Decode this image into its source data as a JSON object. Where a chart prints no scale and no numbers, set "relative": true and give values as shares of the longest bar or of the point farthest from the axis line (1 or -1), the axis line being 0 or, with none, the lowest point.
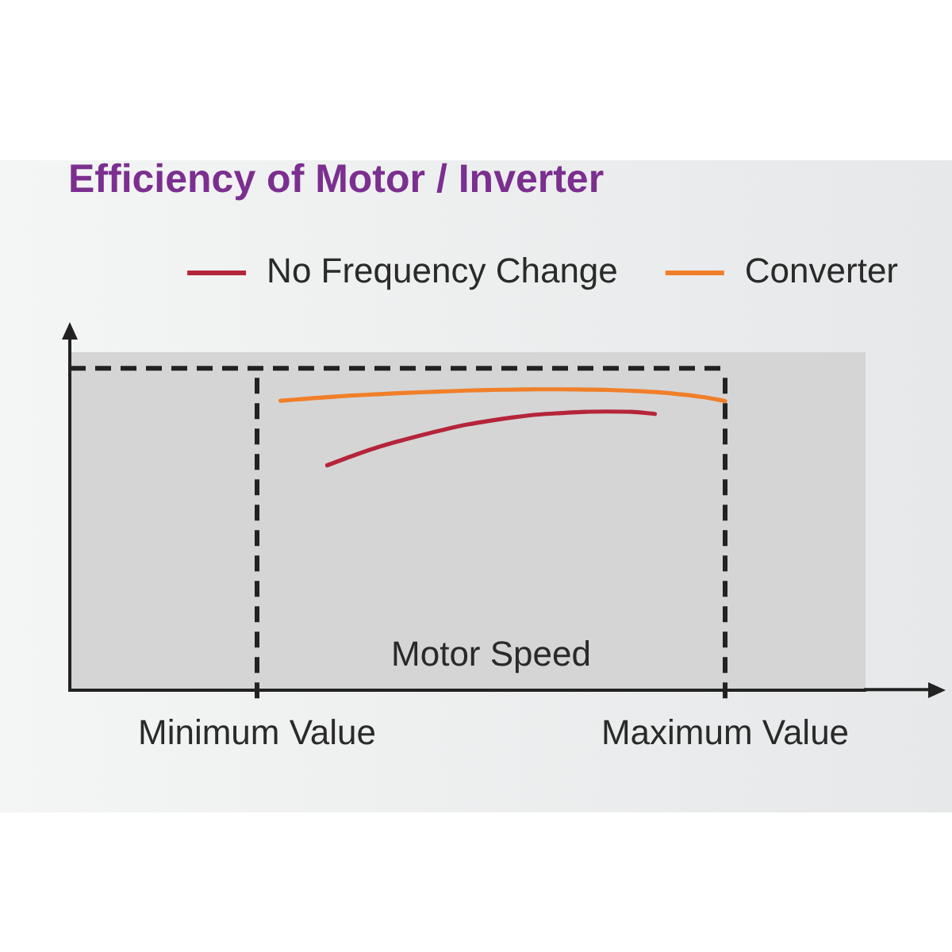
{
  "chart_data": {
    "type": "line",
    "title": "Efficiency of Motor / Inverter",
    "xlabel": "Motor Speed",
    "relative": true,
    "categories": [
      null,
      null,
      null,
      null,
      null,
      null,
      null,
      null,
      "Minimum Value",
      null,
      null,
      null,
      null,
      null,
      null,
      null,
      null,
      null,
      null,
      null,
      null,
      null,
      null,
      null,
      null,
      null,
      null,
      null,
      "Maximum Value",
      null,
      null,
      null,
      null,
      null,
      null
    ],
    "series": [
      {
        "name": "No Frequency Change",
        "color": "#b5253a",
        "values": [
          null,
          null,
          null,
          null,
          null,
          null,
          null,
          null,
          null,
          null,
          null,
          0.747,
          0.776,
          0.803,
          0.826,
          0.847,
          0.866,
          0.883,
          0.896,
          0.907,
          0.916,
          0.921,
          0.925,
          0.926,
          0.925,
          0.918,
          null,
          null,
          null,
          null,
          null,
          null,
          null,
          null,
          null
        ]
      },
      {
        "name": "Converter",
        "color": "#f07f2a",
        "values": [
          null,
          null,
          null,
          null,
          null,
          null,
          null,
          null,
          null,
          0.962,
          0.968,
          0.974,
          0.979,
          0.983,
          0.987,
          0.99,
          0.993,
          0.996,
          0.998,
          0.999,
          1.0,
          1.0,
          0.999,
          0.998,
          0.995,
          0.991,
          0.984,
          0.975,
          0.961,
          null,
          null,
          null,
          null,
          null,
          null
        ]
      }
    ],
    "ref_lines": [
      {
        "axis": "x",
        "value": "Minimum Value",
        "color": "#222222",
        "line_style": "dashed"
      },
      {
        "axis": "x",
        "value": "Maximum Value",
        "color": "#222222",
        "line_style": "dashed"
      },
      {
        "axis": "y",
        "value": 1.07,
        "color": "#222222",
        "line_style": "dashed"
      }
    ],
    "legend": "top right",
    "marker": "none"
  }
}
